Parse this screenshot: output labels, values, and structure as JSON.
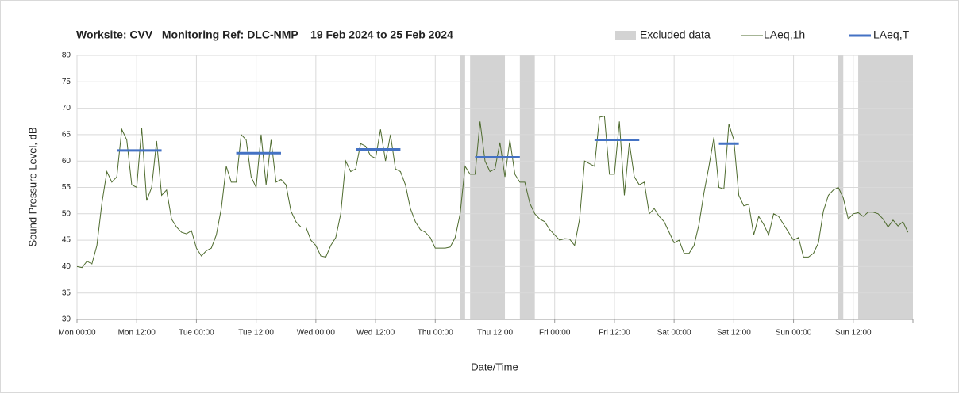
{
  "chart_data": {
    "type": "line",
    "title": "Worksite: CVV   Monitoring Ref: DLC-NMP    19 Feb 2024 to 25 Feb 2024",
    "xlabel": "Date/Time",
    "ylabel": "Sound Pressure Level, dB",
    "xlim": [
      0,
      168
    ],
    "ylim": [
      30,
      80
    ],
    "xticks": [
      {
        "value": 0,
        "label": "Mon 00:00"
      },
      {
        "value": 12,
        "label": "Mon 12:00"
      },
      {
        "value": 24,
        "label": "Tue 00:00"
      },
      {
        "value": 36,
        "label": "Tue 12:00"
      },
      {
        "value": 48,
        "label": "Wed 00:00"
      },
      {
        "value": 60,
        "label": "Wed 12:00"
      },
      {
        "value": 72,
        "label": "Thu 00:00"
      },
      {
        "value": 84,
        "label": "Thu 12:00"
      },
      {
        "value": 96,
        "label": "Fri 00:00"
      },
      {
        "value": 108,
        "label": "Fri 12:00"
      },
      {
        "value": 120,
        "label": "Sat 00:00"
      },
      {
        "value": 132,
        "label": "Sat 12:00"
      },
      {
        "value": 144,
        "label": "Sun 00:00"
      },
      {
        "value": 156,
        "label": "Sun 12:00"
      }
    ],
    "yticks": [
      30,
      35,
      40,
      45,
      50,
      55,
      60,
      65,
      70,
      75,
      80
    ],
    "grid": true,
    "excluded": {
      "name": "Excluded data",
      "color": "#d3d3d3",
      "ranges": [
        [
          77,
          78
        ],
        [
          79,
          86
        ],
        [
          89,
          92
        ],
        [
          153,
          154
        ],
        [
          157,
          168
        ]
      ]
    },
    "series": [
      {
        "name": "LAeq,1h",
        "color": "#4e6b2e",
        "x": [
          0,
          1,
          2,
          3,
          4,
          5,
          6,
          7,
          8,
          9,
          10,
          11,
          12,
          13,
          14,
          15,
          16,
          17,
          18,
          19,
          20,
          21,
          22,
          23,
          24,
          25,
          26,
          27,
          28,
          29,
          30,
          31,
          32,
          33,
          34,
          35,
          36,
          37,
          38,
          39,
          40,
          41,
          42,
          43,
          44,
          45,
          46,
          47,
          48,
          49,
          50,
          51,
          52,
          53,
          54,
          55,
          56,
          57,
          58,
          59,
          60,
          61,
          62,
          63,
          64,
          65,
          66,
          67,
          68,
          69,
          70,
          71,
          72,
          73,
          74,
          75,
          76,
          77,
          78,
          79,
          80,
          81,
          82,
          83,
          84,
          85,
          86,
          87,
          88,
          89,
          90,
          91,
          92,
          93,
          94,
          95,
          96,
          97,
          98,
          99,
          100,
          101,
          102,
          103,
          104,
          105,
          106,
          107,
          108,
          109,
          110,
          111,
          112,
          113,
          114,
          115,
          116,
          117,
          118,
          119,
          120,
          121,
          122,
          123,
          124,
          125,
          126,
          127,
          128,
          129,
          130,
          131,
          132,
          133,
          134,
          135,
          136,
          137,
          138,
          139,
          140,
          141,
          142,
          143,
          144,
          145,
          146,
          147,
          148,
          149,
          150,
          151,
          152,
          153,
          154,
          155,
          156,
          157,
          158,
          159,
          160,
          161,
          162,
          163,
          164,
          165,
          166,
          167
        ],
        "values": [
          40,
          39.8,
          41,
          40.5,
          44,
          52,
          58,
          56,
          57,
          66,
          64,
          55.5,
          55,
          66.3,
          52.5,
          55,
          63.8,
          53.5,
          54.5,
          49,
          47.5,
          46.5,
          46.2,
          46.8,
          43.5,
          42,
          43,
          43.5,
          46,
          51,
          59,
          56,
          56,
          65,
          64,
          57,
          55,
          65,
          55.5,
          64,
          56,
          56.5,
          55.5,
          50.5,
          48.5,
          47.5,
          47.5,
          45,
          44,
          42,
          41.8,
          44,
          45.5,
          50,
          60,
          58,
          58.5,
          63.3,
          62.8,
          61,
          60.5,
          66,
          60,
          65,
          58.5,
          58,
          55.5,
          51,
          48.5,
          47,
          46.5,
          45.5,
          43.5,
          43.5,
          43.5,
          43.7,
          45.5,
          50,
          59,
          57.5,
          57.5,
          67.5,
          60,
          58,
          58.5,
          63.5,
          57,
          64,
          57.5,
          56,
          56,
          52,
          50,
          49,
          48.5,
          47,
          46,
          45,
          45.3,
          45.2,
          44,
          49,
          60,
          59.5,
          59,
          68.3,
          68.5,
          57.5,
          57.5,
          67.5,
          53.5,
          63.5,
          57,
          55.5,
          56,
          50,
          51,
          49.5,
          48.5,
          46.5,
          44.5,
          45,
          42.5,
          42.5,
          44,
          48,
          54,
          59,
          64.5,
          55,
          54.7,
          67,
          64,
          53.5,
          51.5,
          51.8,
          46,
          49.5,
          48,
          46,
          50,
          49.5,
          48,
          46.5,
          45,
          45.5,
          41.8,
          41.8,
          42.5,
          44.5,
          50.5,
          53.5,
          54.5,
          55,
          53,
          49,
          50,
          50.2,
          49.5,
          50.3,
          50.3,
          50,
          49,
          47.5,
          48.8,
          47.7,
          48.5,
          46.5
        ]
      }
    ],
    "period_average": {
      "name": "LAeq,T",
      "color": "#4472c4",
      "segments": [
        {
          "x": [
            8,
            17
          ],
          "value": 62
        },
        {
          "x": [
            32,
            41
          ],
          "value": 61.5
        },
        {
          "x": [
            56,
            65
          ],
          "value": 62.2
        },
        {
          "x": [
            80,
            89
          ],
          "value": 60.7
        },
        {
          "x": [
            104,
            113
          ],
          "value": 64
        },
        {
          "x": [
            129,
            133
          ],
          "value": 63.3
        }
      ]
    }
  }
}
